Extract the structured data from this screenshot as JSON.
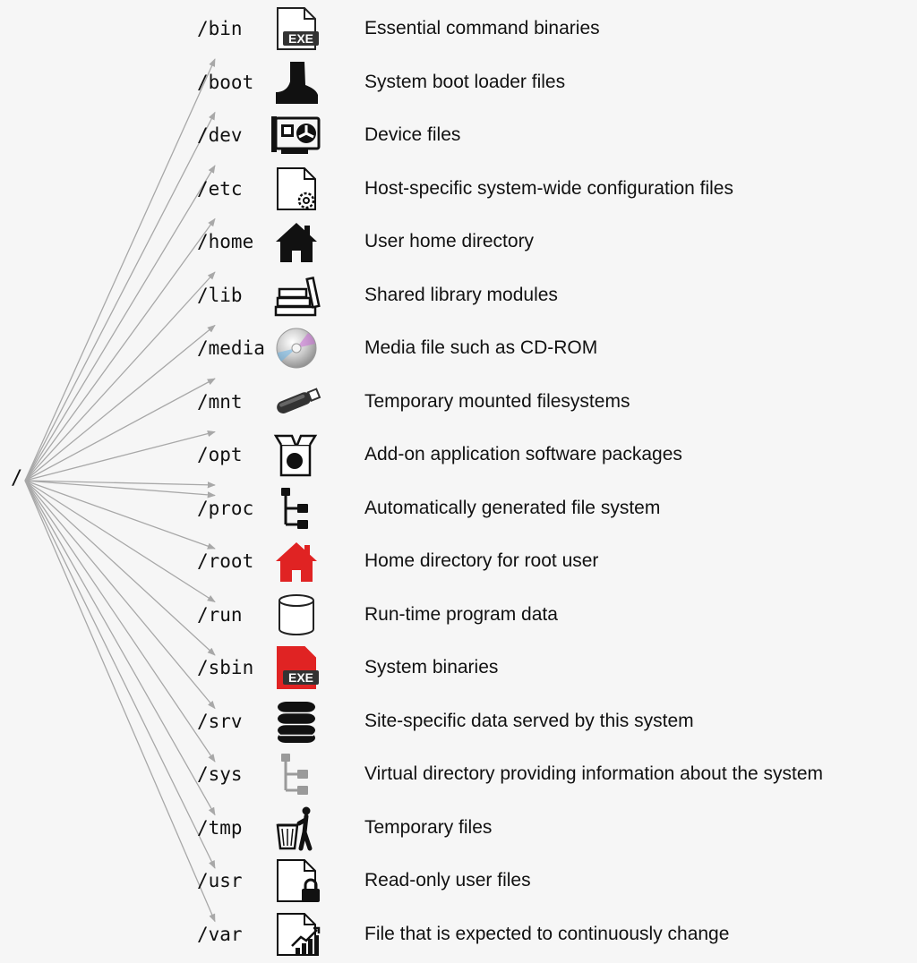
{
  "root": {
    "label": "/"
  },
  "colors": {
    "arrow": "#a8a8a8",
    "red": "#e02323",
    "gray_icon": "#9a9a9a",
    "text": "#111111"
  },
  "directories": [
    {
      "path": "/bin",
      "description": "Essential command binaries",
      "icon": "exe-file-icon",
      "icon_text": "EXE"
    },
    {
      "path": "/boot",
      "description": "System boot loader files",
      "icon": "boot-icon"
    },
    {
      "path": "/dev",
      "description": "Device files",
      "icon": "graphics-card-icon"
    },
    {
      "path": "/etc",
      "description": "Host-specific system-wide configuration files",
      "icon": "config-file-icon"
    },
    {
      "path": "/home",
      "description": "User home directory",
      "icon": "home-icon"
    },
    {
      "path": "/lib",
      "description": "Shared library modules",
      "icon": "books-icon"
    },
    {
      "path": "/media",
      "description": "Media file such as CD-ROM",
      "icon": "cd-rom-icon"
    },
    {
      "path": "/mnt",
      "description": "Temporary mounted filesystems",
      "icon": "usb-drive-icon"
    },
    {
      "path": "/opt",
      "description": "Add-on application software packages",
      "icon": "software-box-icon"
    },
    {
      "path": "/proc",
      "description": "Automatically generated file system",
      "icon": "tree-structure-icon"
    },
    {
      "path": "/root",
      "description": "Home directory for root user",
      "icon": "red-home-icon"
    },
    {
      "path": "/run",
      "description": "Run-time program data",
      "icon": "cylinder-outline-icon"
    },
    {
      "path": "/sbin",
      "description": "System binaries",
      "icon": "red-exe-file-icon",
      "icon_text": "EXE"
    },
    {
      "path": "/srv",
      "description": "Site-specific data served by this system",
      "icon": "database-icon"
    },
    {
      "path": "/sys",
      "description": "Virtual directory providing information about the system",
      "icon": "gray-tree-structure-icon"
    },
    {
      "path": "/tmp",
      "description": "Temporary files",
      "icon": "trash-bin-icon"
    },
    {
      "path": "/usr",
      "description": "Read-only user files",
      "icon": "locked-file-icon"
    },
    {
      "path": "/var",
      "description": "File that is expected to continuously change",
      "icon": "chart-file-icon"
    }
  ]
}
